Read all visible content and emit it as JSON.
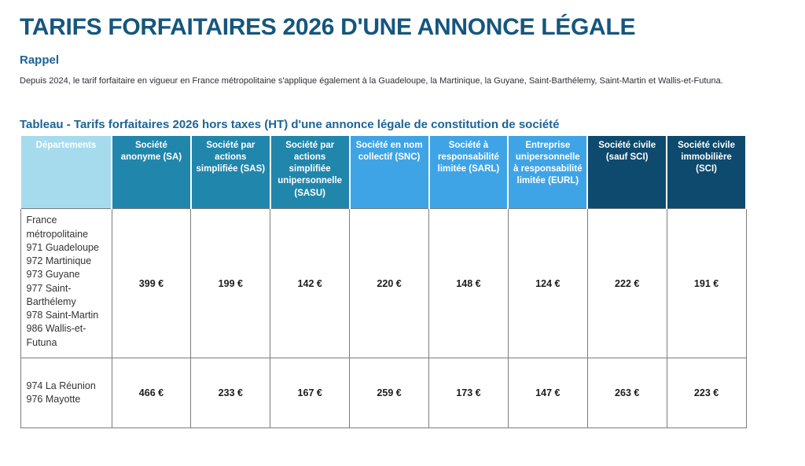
{
  "page": {
    "title": "TARIFS FORFAITAIRES 2026 D'UNE ANNONCE LÉGALE",
    "rappel": {
      "heading": "Rappel",
      "text": "Depuis 2024, le tarif forfaitaire en vigueur en France métropolitaine s'applique également à la Guadeloupe, la Martinique, la Guyane, Saint-Barthélemy, Saint-Martin et Wallis-et-Futuna."
    },
    "table_title": "Tableau - Tarifs forfaitaires 2026 hors taxes (HT) d'une annonce légale de constitution de société"
  },
  "colors": {
    "title": "#15567d",
    "heading": "#1d6494",
    "header_departements_bg": "#a6dbee",
    "header_teal_bg": "#2186ab",
    "header_sky_bg": "#3fa4e6",
    "header_navy_bg": "#0d4a6d",
    "header_text": "#ffffff",
    "body_border": "#7d7d7d"
  },
  "table": {
    "columns": [
      {
        "label": "Départements",
        "group": "departements"
      },
      {
        "label": "Société anonyme (SA)",
        "group": "teal"
      },
      {
        "label": "Société par actions simplifiée (SAS)",
        "group": "teal"
      },
      {
        "label": "Société par actions simplifiée unipersonnelle (SASU)",
        "group": "teal"
      },
      {
        "label": "Société en nom collectif (SNC)",
        "group": "sky"
      },
      {
        "label": "Société à responsabilité limitée (SARL)",
        "group": "sky"
      },
      {
        "label": "Entreprise unipersonnelle à responsabilité limitée (EURL)",
        "group": "sky"
      },
      {
        "label": "Société civile (sauf SCI)",
        "group": "navy"
      },
      {
        "label": "Société civile immobilière (SCI)",
        "group": "navy"
      }
    ],
    "rows": [
      {
        "departements": [
          "France métropolitaine",
          "971 Guadeloupe",
          "972 Martinique",
          "973 Guyane",
          "977 Saint-Barthélemy",
          "978 Saint-Martin",
          "986 Wallis-et-Futuna"
        ],
        "values": [
          "399 €",
          "199 €",
          "142 €",
          "220 €",
          "148 €",
          "124 €",
          "222 €",
          "191 €"
        ]
      },
      {
        "departements": [
          "974 La Réunion",
          "976 Mayotte"
        ],
        "values": [
          "466 €",
          "233 €",
          "167 €",
          "259 €",
          "173 €",
          "147 €",
          "263 €",
          "223 €"
        ]
      }
    ]
  }
}
